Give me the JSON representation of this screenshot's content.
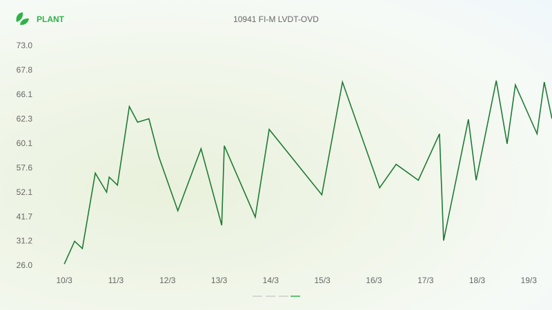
{
  "brand": "PLANT",
  "chart_data": {
    "type": "line",
    "title": "10941 FI-M LVDT-OVD",
    "x": [
      10.0,
      10.2,
      10.35,
      10.6,
      10.82,
      10.87,
      11.03,
      11.26,
      11.42,
      11.64,
      11.83,
      12.2,
      12.65,
      13.05,
      13.1,
      13.7,
      13.97,
      14.99,
      15.39,
      16.11,
      16.43,
      16.86,
      17.27,
      17.35,
      17.59,
      17.83,
      17.98,
      18.37,
      18.58,
      18.74,
      19.16,
      19.3,
      19.45
    ],
    "series": [
      {
        "name": "10941 FI-M LVDT-OVD",
        "color": "#1e7a34",
        "values": [
          26.4,
          31.3,
          29.7,
          56.5,
          52.2,
          55.6,
          53.8,
          64.3,
          62.05,
          62.4,
          58.8,
          44.4,
          59.6,
          38.2,
          59.9,
          41.7,
          61.4,
          51.2,
          67.0,
          53.2,
          58.0,
          54.9,
          61.0,
          31.6,
          54.9,
          62.3,
          54.9,
          67.1,
          60.1,
          66.8,
          61.0,
          67.0,
          62.4
        ]
      }
    ],
    "xlim": [
      9.69,
      19.45
    ],
    "xticks": [
      {
        "value": 10,
        "label": "10/3"
      },
      {
        "value": 11,
        "label": "11/3"
      },
      {
        "value": 12,
        "label": "12/3"
      },
      {
        "value": 13,
        "label": "13/3"
      },
      {
        "value": 14,
        "label": "14/3"
      },
      {
        "value": 15,
        "label": "15/3"
      },
      {
        "value": 16,
        "label": "16/3"
      },
      {
        "value": 17,
        "label": "17/3"
      },
      {
        "value": 18,
        "label": "18/3"
      },
      {
        "value": 19,
        "label": "19/3"
      }
    ],
    "ylim": [
      26,
      73
    ],
    "yticks": [
      {
        "value": 26,
        "label": "26.0"
      },
      31.2,
      41.7,
      52.1,
      57.6,
      60.1,
      62.3,
      66.1,
      67.8,
      {
        "value": 73,
        "label": "73.0"
      }
    ]
  }
}
